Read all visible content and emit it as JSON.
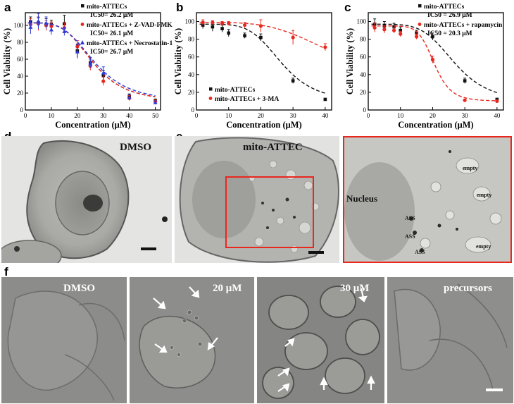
{
  "panels": {
    "a": "a",
    "b": "b",
    "c": "c",
    "d": "d",
    "e": "e",
    "f": "f"
  },
  "colors": {
    "black": "#111111",
    "red": "#e8281e",
    "blue": "#2b3bd8"
  },
  "chart_data": [
    {
      "id": "a",
      "type": "line",
      "xlabel": "Concentration (μM)",
      "ylabel": "Cell Viability (%)",
      "xlim": [
        0,
        52
      ],
      "ylim": [
        0,
        115
      ],
      "xticks": [
        0,
        10,
        20,
        30,
        40,
        50
      ],
      "yticks": [
        0,
        20,
        40,
        60,
        80,
        100
      ],
      "series": [
        {
          "name": "mito-ATTECs",
          "ic50": "IC50= 26.2 μM",
          "color": "#111111",
          "marker": "square",
          "x": [
            2,
            5,
            8,
            10,
            15,
            20,
            25,
            30,
            40,
            50
          ],
          "y": [
            104,
            103,
            101,
            101,
            102,
            70,
            56,
            41,
            16,
            11
          ],
          "err": [
            6,
            6,
            7,
            5,
            10,
            8,
            6,
            6,
            3,
            2
          ]
        },
        {
          "name": "mito-ATTECs + Z-VAD-FMK",
          "ic50": "IC50= 26.1 μM",
          "color": "#e8281e",
          "marker": "circle",
          "x": [
            2,
            5,
            8,
            10,
            15,
            20,
            25,
            30,
            40,
            50
          ],
          "y": [
            101,
            102,
            100,
            99,
            97,
            75,
            52,
            34,
            14,
            10
          ],
          "err": [
            7,
            8,
            6,
            5,
            6,
            7,
            5,
            5,
            3,
            2
          ]
        },
        {
          "name": "mito-ATTECs + Necrostatin-1",
          "ic50": "IC50= 26.7 μM",
          "color": "#2b3bd8",
          "marker": "triangle",
          "x": [
            2,
            5,
            8,
            10,
            15,
            20,
            25,
            30,
            40,
            50
          ],
          "y": [
            98,
            105,
            103,
            95,
            93,
            69,
            55,
            44,
            15,
            9
          ],
          "err": [
            8,
            9,
            7,
            6,
            5,
            8,
            5,
            7,
            3,
            2
          ]
        }
      ]
    },
    {
      "id": "b",
      "type": "line",
      "xlabel": "Concentration (μM)",
      "ylabel": "Cell Viability (%)",
      "xlim": [
        0,
        42
      ],
      "ylim": [
        0,
        110
      ],
      "xticks": [
        0,
        10,
        20,
        30,
        40
      ],
      "yticks": [
        0,
        20,
        40,
        60,
        80,
        100
      ],
      "series": [
        {
          "name": "mito-ATTECs",
          "color": "#111111",
          "marker": "square",
          "x": [
            2,
            5,
            8,
            10,
            15,
            20,
            30,
            40
          ],
          "y": [
            96,
            94,
            92,
            87,
            84,
            82,
            33,
            12
          ],
          "err": [
            4,
            5,
            4,
            4,
            3,
            4,
            3,
            1
          ]
        },
        {
          "name": "mito-ATTECs + 3-MA",
          "color": "#e8281e",
          "marker": "circle",
          "x": [
            2,
            5,
            8,
            10,
            15,
            20,
            30,
            40
          ],
          "y": [
            99,
            99,
            98,
            98,
            96,
            95,
            82,
            71
          ],
          "err": [
            3,
            2,
            2,
            2,
            3,
            7,
            8,
            4
          ]
        }
      ]
    },
    {
      "id": "c",
      "type": "line",
      "xlabel": "Concentration (μM)",
      "ylabel": "Cell Viability (%)",
      "xlim": [
        0,
        42
      ],
      "ylim": [
        0,
        110
      ],
      "xticks": [
        0,
        10,
        20,
        30,
        40
      ],
      "yticks": [
        0,
        20,
        40,
        60,
        80,
        100
      ],
      "series": [
        {
          "name": "mito-ATTECs",
          "ic50": "IC50 = 26.9 μM",
          "color": "#111111",
          "marker": "square",
          "x": [
            2,
            5,
            8,
            10,
            15,
            20,
            30,
            40
          ],
          "y": [
            97,
            95,
            94,
            90,
            87,
            83,
            33,
            12
          ],
          "err": [
            6,
            5,
            4,
            4,
            3,
            4,
            3,
            1
          ]
        },
        {
          "name": "mito-ATTECs + rapamycin",
          "ic50": "IC50 = 20.3 μM",
          "color": "#e8281e",
          "marker": "circle",
          "x": [
            2,
            5,
            8,
            10,
            15,
            20,
            30,
            40
          ],
          "y": [
            93,
            91,
            90,
            86,
            83,
            57,
            11,
            10
          ],
          "err": [
            5,
            4,
            3,
            3,
            3,
            4,
            1,
            1
          ]
        }
      ]
    }
  ],
  "micrographs": {
    "d_label": "DMSO",
    "e_label": "mito-ATTEC",
    "zoom_labels": {
      "nucleus": "Nucleus",
      "empty": "empty",
      "ass": "ASS"
    },
    "f_labels": [
      "DMSO",
      "20 μM",
      "30 μM",
      "precursors"
    ]
  }
}
